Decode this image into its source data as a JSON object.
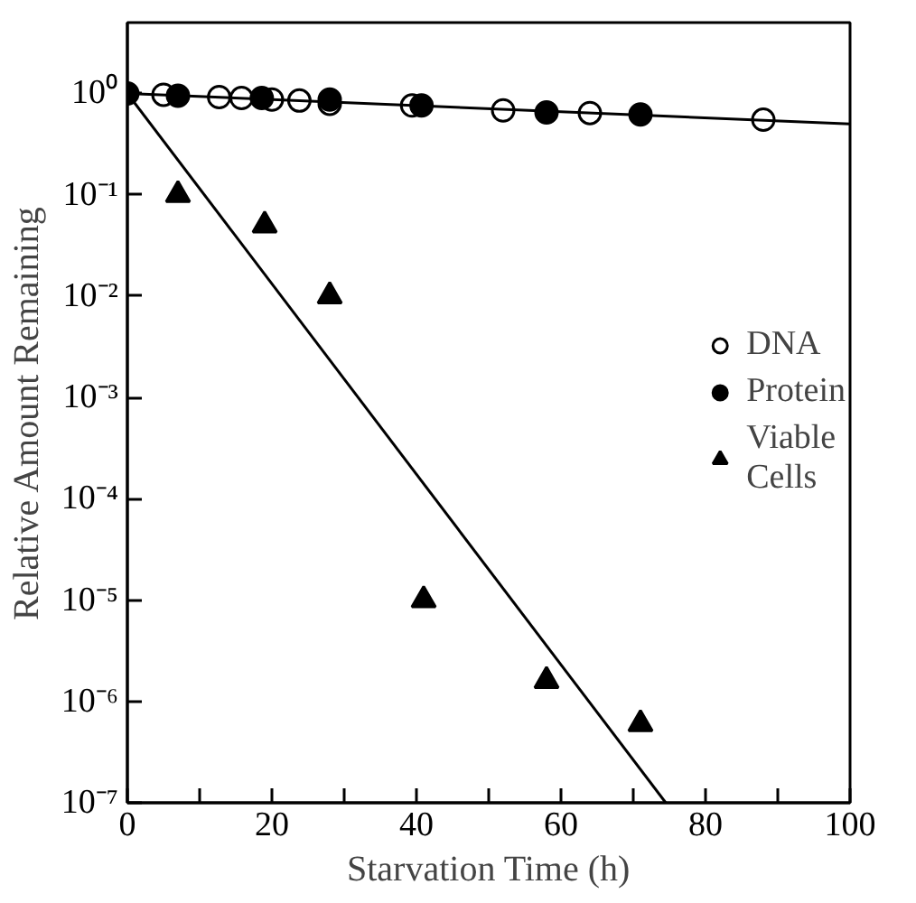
{
  "chart_data": {
    "type": "scatter",
    "xlabel": "Starvation Time (h)",
    "ylabel": "Relative Amount Remaining",
    "log": "y",
    "xlim": [
      0,
      100
    ],
    "ylim": [
      1e-07,
      5
    ],
    "xticks": [
      0,
      {
        "value": 10,
        "label": null
      },
      20,
      {
        "value": 30,
        "label": null
      },
      40,
      {
        "value": 50,
        "label": null
      },
      60,
      {
        "value": 70,
        "label": null
      },
      80,
      {
        "value": 90,
        "label": null
      },
      100
    ],
    "yticks": [
      {
        "value": 1,
        "label": "10⁰"
      },
      {
        "value": 0.1,
        "label": "10⁻¹"
      },
      {
        "value": 0.01,
        "label": "10⁻²"
      },
      {
        "value": 0.001,
        "label": "10⁻³"
      },
      {
        "value": 0.0001,
        "label": "10⁻⁴"
      },
      {
        "value": 1e-05,
        "label": "10⁻⁵"
      },
      {
        "value": 1e-06,
        "label": "10⁻⁶"
      },
      {
        "value": 1e-07,
        "label": "10⁻⁷"
      }
    ],
    "grid": false,
    "legend": "right",
    "series": [
      {
        "name": "DNA",
        "marker": "circle",
        "color": "#ffffff",
        "x": [
          5,
          12.7,
          15.8,
          20,
          23.8,
          28,
          39.4,
          52,
          64,
          88
        ],
        "values": [
          0.97,
          0.92,
          0.9,
          0.87,
          0.85,
          0.79,
          0.76,
          0.68,
          0.64,
          0.55
        ]
      },
      {
        "name": "Protein",
        "marker": "circle",
        "color": "#000000",
        "x": [
          0,
          7,
          18.6,
          28,
          40.7,
          58,
          71
        ],
        "values": [
          1,
          0.95,
          0.9,
          0.87,
          0.76,
          0.65,
          0.62
        ]
      },
      {
        "name": "Viable Cells",
        "marker": "triangle",
        "color": "#000000",
        "x": [
          7,
          19,
          28,
          41,
          58,
          71
        ],
        "values": [
          0.1,
          0.05,
          0.01,
          1e-05,
          1.6e-06,
          6e-07
        ]
      },
      {
        "type": "line",
        "marker": "none",
        "line_style": "solid",
        "color": "#000000",
        "x": [
          0,
          100
        ],
        "values": [
          1,
          0.5
        ]
      },
      {
        "type": "line",
        "marker": "none",
        "line_style": "solid",
        "color": "#000000",
        "x": [
          0,
          74.5
        ],
        "values": [
          1,
          1e-07
        ]
      }
    ]
  }
}
